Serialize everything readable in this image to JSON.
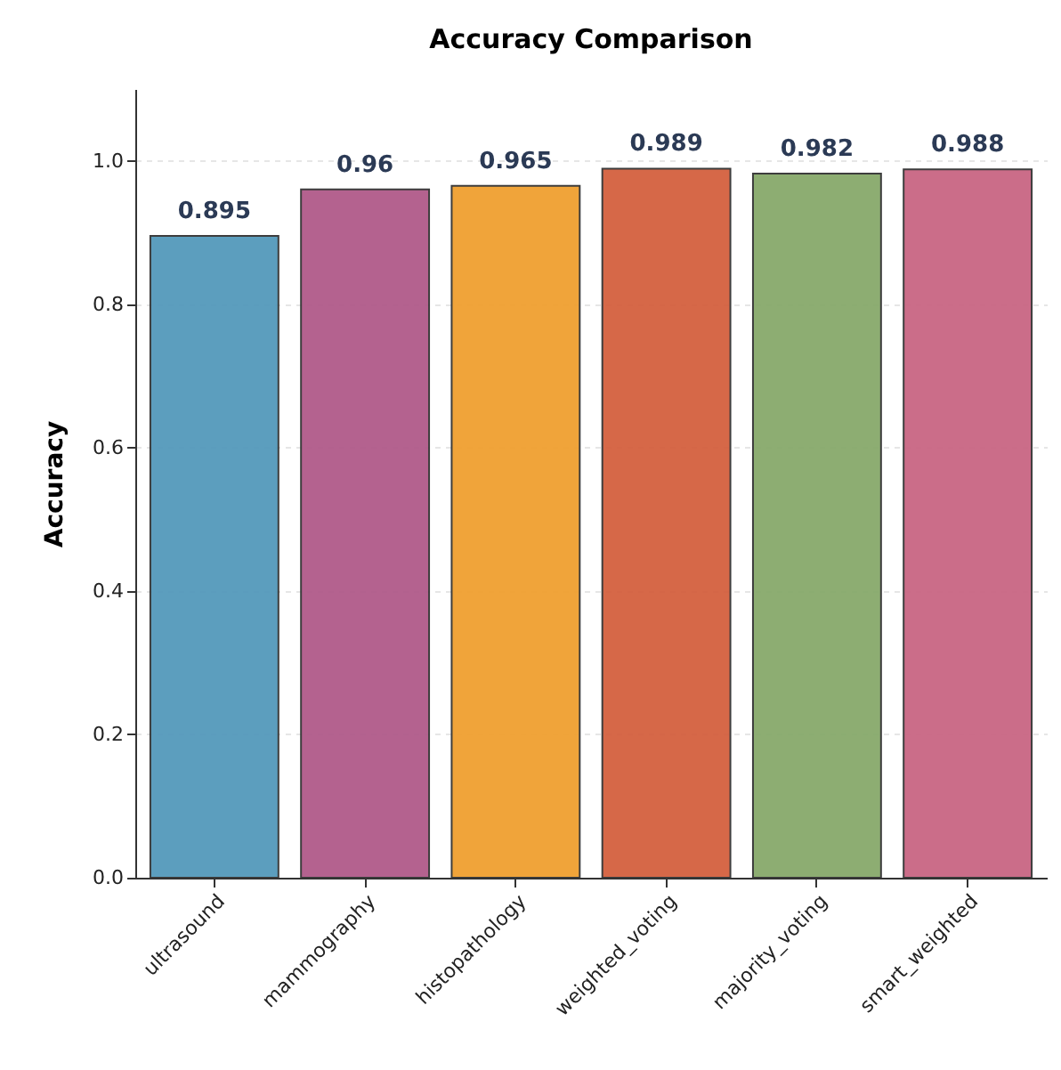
{
  "chart_data": {
    "type": "bar",
    "title": "Accuracy Comparison",
    "ylabel": "Accuracy",
    "categories": [
      "ultrasound",
      "mammography",
      "histopathology",
      "weighted_voting",
      "majority_voting",
      "smart_weighted"
    ],
    "values": [
      0.895,
      0.96,
      0.965,
      0.989,
      0.982,
      0.988
    ],
    "colors": [
      "#5499bb",
      "#b05a8a",
      "#f0a030",
      "#d4603f",
      "#87a96b",
      "#c96683"
    ],
    "ylim": [
      0,
      1.1
    ],
    "yticks": [
      {
        "value": 0,
        "label": "0.0"
      },
      0.2,
      0.4,
      0.6,
      0.8,
      {
        "value": 1,
        "label": "1.0"
      }
    ],
    "grid": "y",
    "data_labels": true
  }
}
